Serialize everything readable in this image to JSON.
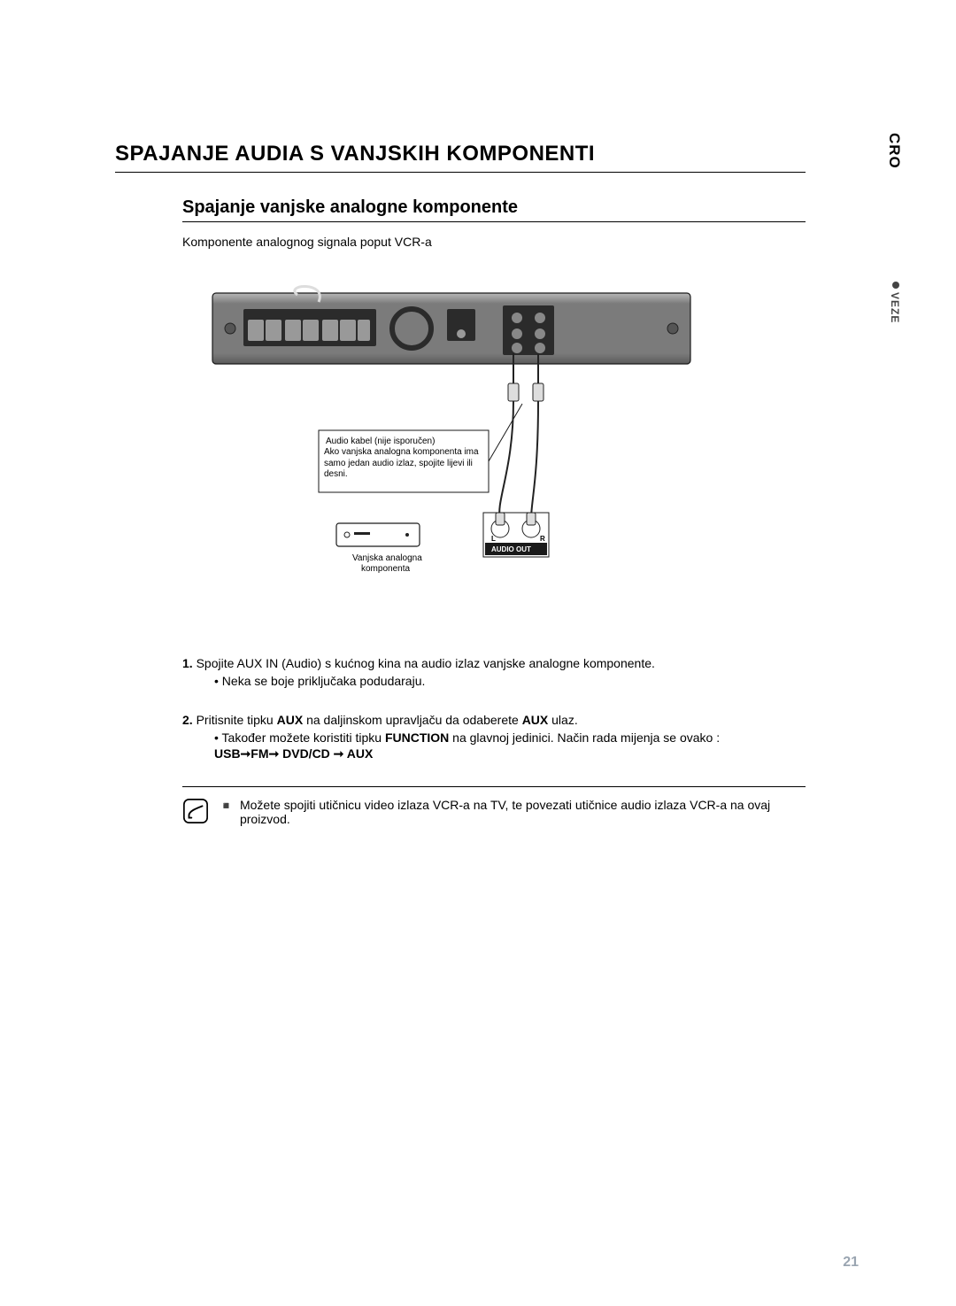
{
  "lang_tab": "CRO",
  "section_tab": "VEZE",
  "title": "SPAJANJE AUDIA S VANJSKIH KOMPONENTI",
  "subtitle": "Spajanje vanjske analogne komponente",
  "intro": "Komponente analognog signala poput VCR-a",
  "diagram": {
    "callout_line1": "Audio kabel (nije isporučen)",
    "callout_line2": "Ako vanjska analogna komponenta ima samo jedan audio izlaz, spojite lijevi ili desni.",
    "device_label_line1": "Vanjska analogna",
    "device_label_line2": "komponenta",
    "audio_out_label": "AUDIO OUT",
    "l_label": "L",
    "r_label": "R",
    "colors": {
      "unit_body": "#7b7b7b",
      "unit_body_light": "#a8a8a8",
      "unit_panel_dark": "#2b2b2b",
      "stroke": "#1a1a1a",
      "cable": "#222222",
      "callout_border": "#1a1a1a",
      "audio_box_fill": "#1a1a1a",
      "audio_box_text": "#ffffff"
    }
  },
  "steps": [
    {
      "num": "1.",
      "text_parts": [
        "Spojite AUX IN  (Audio) s kućnog kina na audio izlaz vanjske analogne komponente."
      ],
      "bullets": [
        "Neka se boje priključaka podudaraju."
      ]
    },
    {
      "num": "2.",
      "text_parts": [
        "Pritisnite tipku ",
        {
          "b": "AUX"
        },
        " na daljinskom upravljaču da odaberete ",
        {
          "b": "AUX"
        },
        "  ulaz."
      ],
      "bullets_rich": [
        [
          "Također možete koristiti tipku ",
          {
            "b": "FUNCTION"
          },
          " na glavnoj jedinici. Način rada mijenja se ovako :"
        ]
      ],
      "sequence": "USB➞FM➞ DVD/CD ➞ AUX"
    }
  ],
  "note": "Možete spojiti utičnicu video izlaza VCR-a na TV, te povezati utičnice audio izlaza VCR-a na ovaj proizvod.",
  "page_number": "21"
}
